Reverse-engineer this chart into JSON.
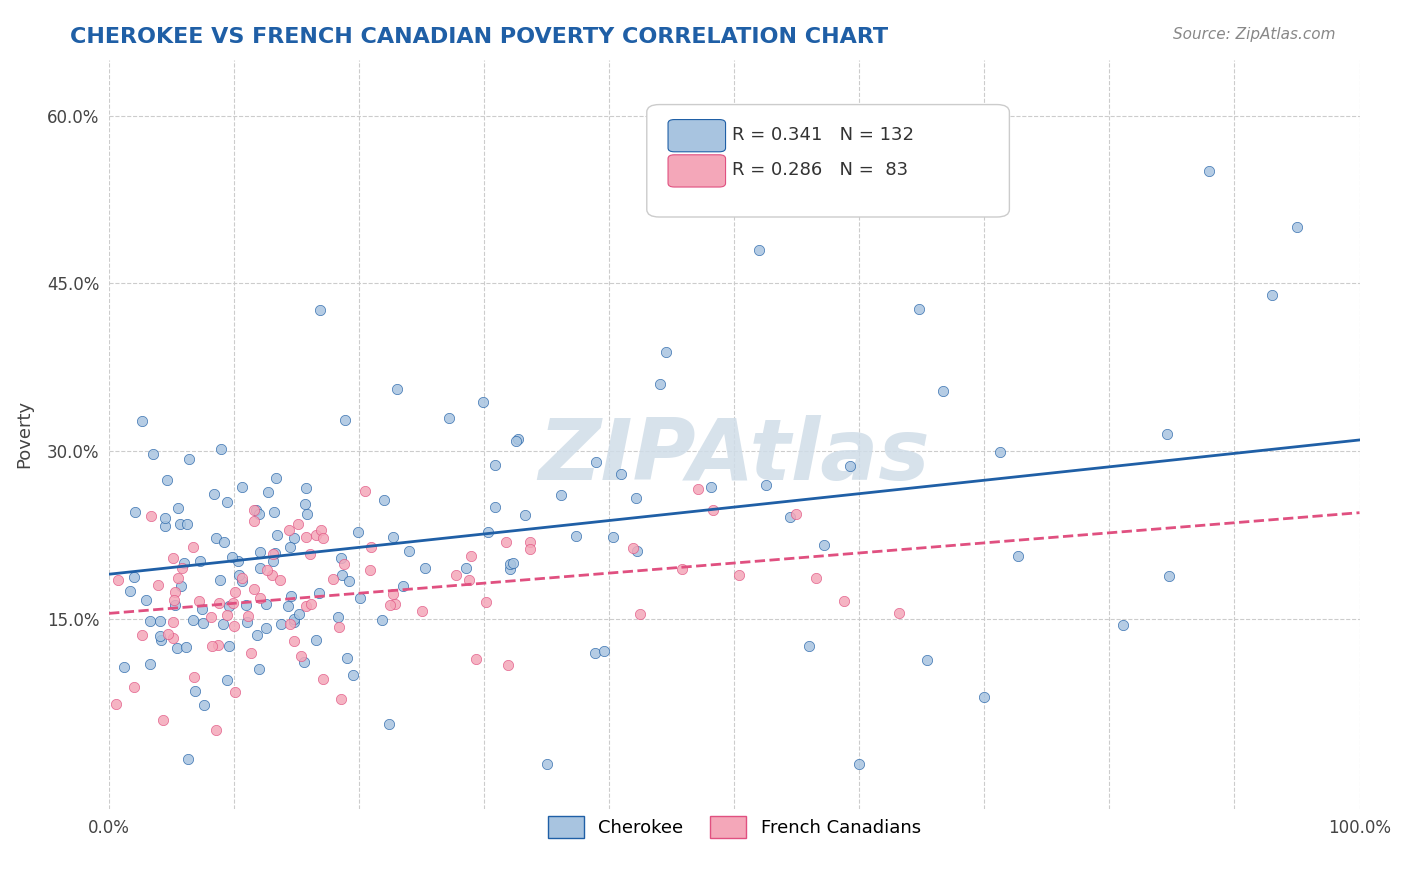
{
  "title": "CHEROKEE VS FRENCH CANADIAN POVERTY CORRELATION CHART",
  "source": "Source: ZipAtlas.com",
  "xlabel": "",
  "ylabel": "Poverty",
  "xlim": [
    0.0,
    1.0
  ],
  "ylim": [
    -0.02,
    0.65
  ],
  "xticks": [
    0.0,
    0.1,
    0.2,
    0.3,
    0.4,
    0.5,
    0.6,
    0.7,
    0.8,
    0.9,
    1.0
  ],
  "xticklabels": [
    "0.0%",
    "",
    "",
    "",
    "",
    "",
    "",
    "",
    "",
    "",
    "100.0%"
  ],
  "yticks": [
    0.0,
    0.15,
    0.3,
    0.45,
    0.6
  ],
  "yticklabels": [
    "",
    "15.0%",
    "30.0%",
    "45.0%",
    "60.0%"
  ],
  "cherokee_R": 0.341,
  "cherokee_N": 132,
  "french_R": 0.286,
  "french_N": 83,
  "cherokee_color": "#a8c4e0",
  "cherokee_line_color": "#1f5fa6",
  "french_color": "#f4a7b9",
  "french_line_color": "#e05080",
  "watermark": "ZIPAtlas",
  "title_color": "#1f5fa6",
  "background_color": "#ffffff",
  "grid_color": "#cccccc",
  "watermark_color": "#d0dde8",
  "slope_chero": 0.12,
  "intercept_chero": 0.19,
  "slope_french": 0.09,
  "intercept_french": 0.155
}
